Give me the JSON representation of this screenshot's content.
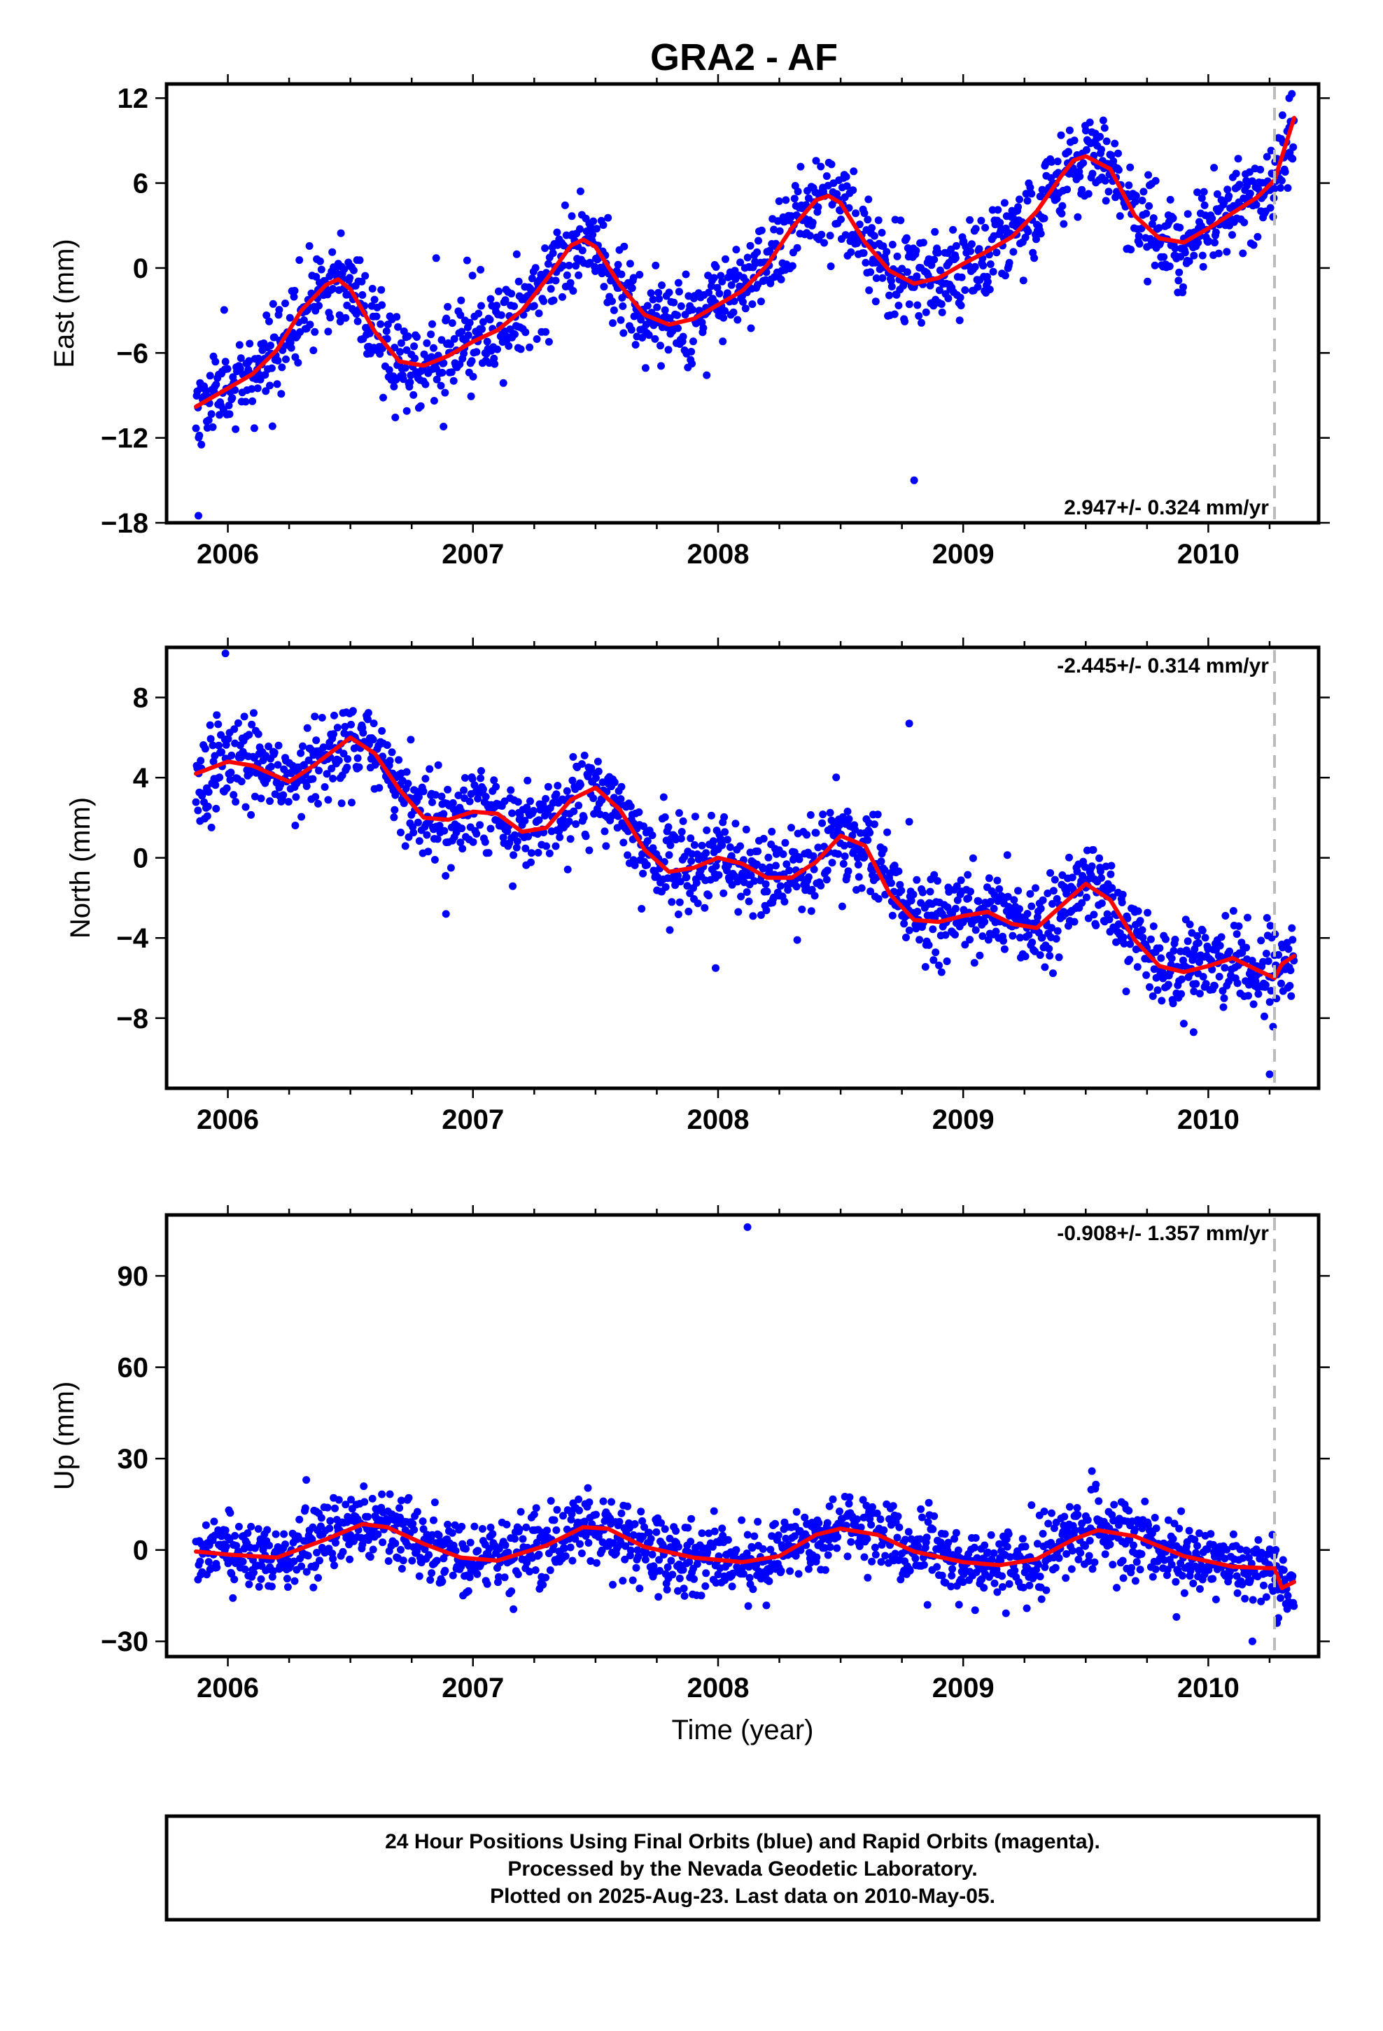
{
  "title": "GRA2 - AF",
  "colors": {
    "final_orbits": "#0000ff",
    "fit": "#ff0000",
    "dashed_line": "#bbbbbb"
  },
  "footer": {
    "line1": "24 Hour Positions Using Final Orbits (blue) and Rapid Orbits (magenta).",
    "line2": "Processed by the Nevada Geodetic Laboratory.",
    "line3": "Plotted on 2025-Aug-23. Last data on 2010-May-05."
  },
  "chart_data": [
    {
      "type": "scatter",
      "ylabel": "East (mm)",
      "xlabel": "",
      "xlim": [
        2005.75,
        2010.45
      ],
      "ylim": [
        -18,
        13
      ],
      "x_ticks": [
        2006,
        2007,
        2008,
        2009,
        2010
      ],
      "x_tick_labels": [
        "2006",
        "2007",
        "2008",
        "2009",
        "2010"
      ],
      "y_ticks": [
        -18,
        -12,
        -6,
        0,
        6,
        12
      ],
      "y_tick_labels": [
        "−18",
        "−12",
        "−6",
        "0",
        "6",
        "12"
      ],
      "rate_label": "2.947+/- 0.324 mm/yr",
      "rate_position": "bottom-right",
      "vertical_dashed_x": 2010.27,
      "fit": {
        "x": [
          2005.87,
          2006.0,
          2006.1,
          2006.2,
          2006.3,
          2006.4,
          2006.45,
          2006.5,
          2006.6,
          2006.7,
          2006.8,
          2006.9,
          2007.0,
          2007.1,
          2007.2,
          2007.3,
          2007.4,
          2007.45,
          2007.5,
          2007.6,
          2007.7,
          2007.8,
          2007.9,
          2008.0,
          2008.1,
          2008.2,
          2008.3,
          2008.4,
          2008.45,
          2008.5,
          2008.6,
          2008.7,
          2008.8,
          2008.9,
          2009.0,
          2009.1,
          2009.2,
          2009.3,
          2009.4,
          2009.45,
          2009.5,
          2009.6,
          2009.7,
          2009.8,
          2009.9,
          2010.0,
          2010.1,
          2010.2,
          2010.27,
          2010.35
        ],
        "y": [
          -9.8,
          -8.5,
          -7.5,
          -5.8,
          -3.0,
          -1.2,
          -0.8,
          -1.5,
          -4.5,
          -6.6,
          -6.9,
          -6.2,
          -5.2,
          -4.4,
          -3.0,
          -0.8,
          1.6,
          2.0,
          1.5,
          -1.2,
          -3.3,
          -4.0,
          -3.6,
          -2.6,
          -1.6,
          0.2,
          2.8,
          4.8,
          5.1,
          4.6,
          1.8,
          -0.2,
          -1.1,
          -0.7,
          0.3,
          1.2,
          2.2,
          4.0,
          6.5,
          7.6,
          7.9,
          7.0,
          3.7,
          2.1,
          1.8,
          2.8,
          3.9,
          5.0,
          6.2,
          10.6
        ]
      },
      "scatter": {
        "noise": 1.6,
        "seed": 11,
        "outliers": [
          [
            2008.8,
            -15.0
          ],
          [
            2006.88,
            -11.2
          ],
          [
            2006.73,
            -10.1
          ],
          [
            2006.85,
            0.7
          ],
          [
            2005.88,
            -17.5
          ],
          [
            2010.33,
            12.0
          ]
        ]
      }
    },
    {
      "type": "scatter",
      "ylabel": "North (mm)",
      "xlabel": "",
      "xlim": [
        2005.75,
        2010.45
      ],
      "ylim": [
        -11.5,
        10.5
      ],
      "x_ticks": [
        2006,
        2007,
        2008,
        2009,
        2010
      ],
      "x_tick_labels": [
        "2006",
        "2007",
        "2008",
        "2009",
        "2010"
      ],
      "y_ticks": [
        -8,
        -4,
        0,
        4,
        8
      ],
      "y_tick_labels": [
        "−8",
        "−4",
        "0",
        "4",
        "8"
      ],
      "rate_label": "-2.445+/- 0.314 mm/yr",
      "rate_position": "top-right",
      "vertical_dashed_x": 2010.27,
      "fit": {
        "x": [
          2005.87,
          2006.0,
          2006.1,
          2006.25,
          2006.35,
          2006.5,
          2006.6,
          2006.7,
          2006.8,
          2006.9,
          2007.0,
          2007.1,
          2007.2,
          2007.3,
          2007.4,
          2007.5,
          2007.6,
          2007.7,
          2007.8,
          2007.9,
          2008.0,
          2008.1,
          2008.2,
          2008.3,
          2008.4,
          2008.5,
          2008.6,
          2008.7,
          2008.8,
          2008.9,
          2009.0,
          2009.1,
          2009.2,
          2009.3,
          2009.4,
          2009.5,
          2009.6,
          2009.7,
          2009.8,
          2009.9,
          2010.0,
          2010.1,
          2010.2,
          2010.27,
          2010.3,
          2010.35
        ],
        "y": [
          4.2,
          4.8,
          4.6,
          3.8,
          4.6,
          6.0,
          5.2,
          3.4,
          2.0,
          1.9,
          2.3,
          2.2,
          1.3,
          1.5,
          2.9,
          3.5,
          2.4,
          0.4,
          -0.7,
          -0.5,
          0.0,
          -0.3,
          -1.0,
          -1.0,
          -0.2,
          1.1,
          0.6,
          -1.8,
          -3.1,
          -3.2,
          -2.9,
          -2.7,
          -3.3,
          -3.5,
          -2.4,
          -1.3,
          -2.1,
          -4.1,
          -5.4,
          -5.7,
          -5.4,
          -5.0,
          -5.6,
          -6.0,
          -5.3,
          -4.9
        ]
      },
      "scatter": {
        "noise": 1.1,
        "seed": 23,
        "outliers": [
          [
            2005.99,
            10.2
          ],
          [
            2008.78,
            6.7
          ],
          [
            2006.89,
            -2.8
          ],
          [
            2010.25,
            -10.8
          ],
          [
            2009.94,
            -8.7
          ],
          [
            2007.99,
            -5.5
          ],
          [
            2008.78,
            1.8
          ]
        ]
      }
    },
    {
      "type": "scatter",
      "ylabel": "Up (mm)",
      "xlabel": "Time (year)",
      "xlim": [
        2005.75,
        2010.45
      ],
      "ylim": [
        -35,
        110
      ],
      "x_ticks": [
        2006,
        2007,
        2008,
        2009,
        2010
      ],
      "x_tick_labels": [
        "2006",
        "2007",
        "2008",
        "2009",
        "2010"
      ],
      "y_ticks": [
        -30,
        0,
        30,
        60,
        90
      ],
      "y_tick_labels": [
        "−30",
        "0",
        "30",
        "60",
        "90"
      ],
      "rate_label": "-0.908+/- 1.357 mm/yr",
      "rate_position": "top-right",
      "vertical_dashed_x": 2010.27,
      "fit": {
        "x": [
          2005.87,
          2006.0,
          2006.2,
          2006.4,
          2006.55,
          2006.65,
          2006.8,
          2006.95,
          2007.1,
          2007.3,
          2007.45,
          2007.55,
          2007.7,
          2007.9,
          2008.1,
          2008.25,
          2008.4,
          2008.5,
          2008.65,
          2008.8,
          2009.0,
          2009.15,
          2009.3,
          2009.45,
          2009.55,
          2009.7,
          2009.9,
          2010.1,
          2010.25,
          2010.27,
          2010.3,
          2010.35
        ],
        "y": [
          -0.5,
          -1.5,
          -2.5,
          3.5,
          8.5,
          7.5,
          2.0,
          -2.5,
          -3.5,
          1.5,
          7.5,
          7.0,
          1.0,
          -2.5,
          -4.0,
          -2.0,
          5.0,
          7.0,
          5.0,
          -0.5,
          -4.0,
          -5.0,
          -3.0,
          3.5,
          6.5,
          4.5,
          -2.0,
          -5.5,
          -6.0,
          -6.0,
          -12.5,
          -10.5
        ]
      },
      "scatter": {
        "noise": 6.0,
        "seed": 37,
        "outliers": [
          [
            2008.12,
            106
          ],
          [
            2006.32,
            23
          ],
          [
            2009.87,
            -22
          ],
          [
            2010.18,
            -30
          ],
          [
            2010.28,
            -24
          ]
        ]
      }
    }
  ]
}
